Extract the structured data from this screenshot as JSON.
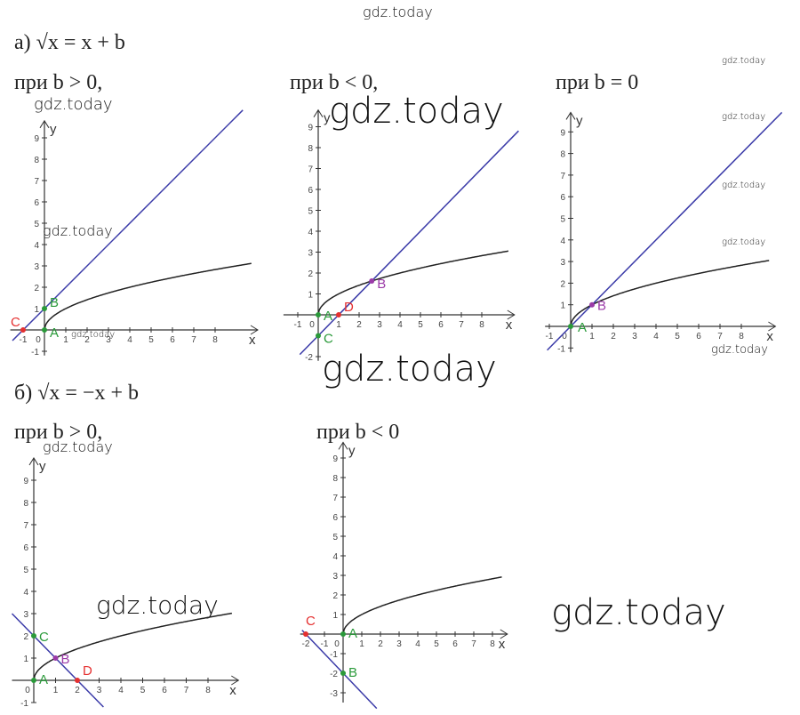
{
  "watermarks": [
    "gdz.today",
    "gdz.today",
    "gdz.today",
    "gdz.today",
    "gdz.today",
    "gdz.today",
    "gdz.today",
    "gdz.today",
    "gdz.today",
    "gdz.today",
    "gdz.today",
    "gdz.today",
    "gdz.today",
    "gdz.today"
  ],
  "sections": [
    {
      "heading": "а) √x = x + b",
      "graphs": [
        {
          "caption": "при b > 0,",
          "axis_x": "x",
          "axis_y": "y",
          "x_ticks": [
            -1,
            0,
            1,
            2,
            3,
            4,
            5,
            6,
            7,
            8
          ],
          "y_ticks": [
            -1,
            1,
            2,
            3,
            4,
            5,
            6,
            7,
            8,
            9
          ],
          "points": [
            "C",
            "A",
            "B"
          ]
        },
        {
          "caption": "при b < 0,",
          "axis_x": "x",
          "axis_y": "y",
          "x_ticks": [
            -1,
            0,
            1,
            2,
            3,
            4,
            5,
            6,
            7,
            8
          ],
          "y_ticks": [
            -2,
            1,
            2,
            3,
            4,
            5,
            6,
            7,
            8,
            9
          ],
          "points": [
            "A",
            "C",
            "D",
            "B"
          ]
        },
        {
          "caption": "при b = 0",
          "axis_x": "x",
          "axis_y": "y",
          "x_ticks": [
            -1,
            0,
            1,
            2,
            3,
            4,
            5,
            6,
            7,
            8
          ],
          "y_ticks": [
            -1,
            1,
            2,
            3,
            4,
            5,
            6,
            7,
            8,
            9
          ],
          "points": [
            "A",
            "B"
          ]
        }
      ]
    },
    {
      "heading": "б) √x = −x + b",
      "graphs": [
        {
          "caption": "при b > 0,",
          "axis_x": "x",
          "axis_y": "y",
          "x_ticks": [
            0,
            1,
            2,
            3,
            4,
            5,
            6,
            7,
            8
          ],
          "y_ticks": [
            -1,
            1,
            2,
            3,
            4,
            5,
            6,
            7,
            8,
            9
          ],
          "points": [
            "A",
            "C",
            "B",
            "D"
          ]
        },
        {
          "caption": "при b < 0",
          "axis_x": "x",
          "axis_y": "y",
          "x_ticks": [
            -2,
            -1,
            0,
            1,
            2,
            3,
            4,
            5,
            6,
            7,
            8
          ],
          "y_ticks": [
            -3,
            -2,
            -1,
            1,
            2,
            3,
            4,
            5,
            6,
            7,
            8,
            9
          ],
          "points": [
            "A",
            "C",
            "B"
          ]
        }
      ]
    }
  ]
}
